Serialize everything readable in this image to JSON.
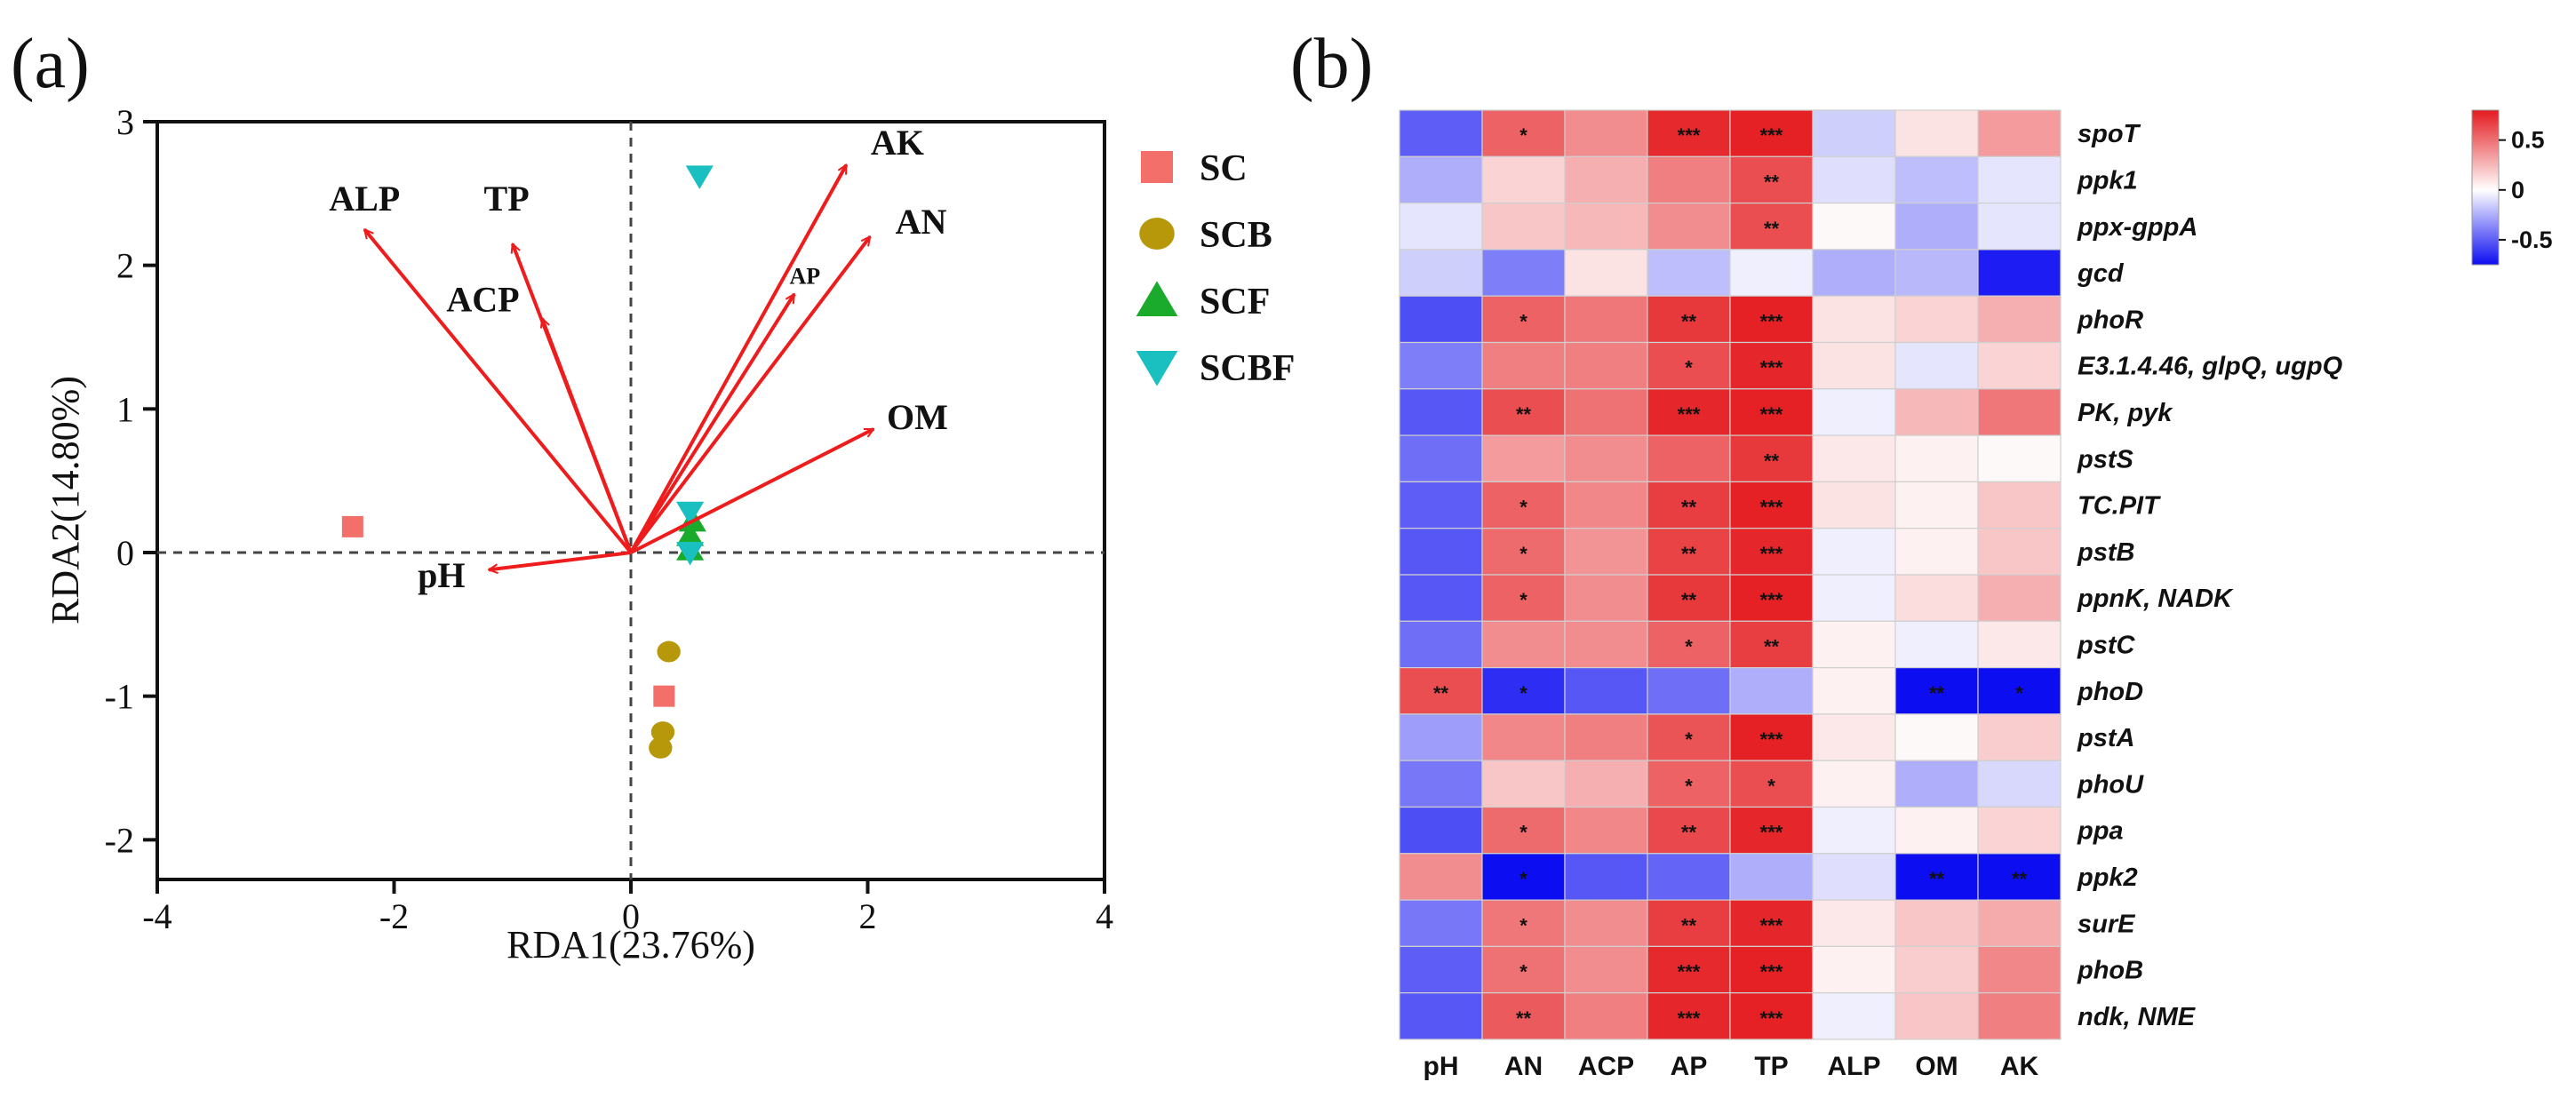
{
  "panel_labels": {
    "a": "(a)",
    "b": "(b)"
  },
  "chart_data": [
    {
      "type": "scatter",
      "subtype": "rda-biplot",
      "xlabel": "RDA1(23.76%)",
      "ylabel": "RDA2(14.80%)",
      "xlim": [
        -4,
        4
      ],
      "ylim": [
        -2.2,
        3
      ],
      "x_ticks": [
        "-4",
        "-2",
        "0",
        "2",
        "4"
      ],
      "x_tick_values": [
        -4,
        -2,
        0,
        2,
        4
      ],
      "y_ticks": [
        "3",
        "2",
        "1",
        "0",
        "-1",
        "-2"
      ],
      "y_tick_values": [
        3,
        2,
        1,
        0,
        -1,
        -2
      ],
      "reference_lines": "dashed at x=0 and y=0",
      "legend_position": "right",
      "legend": [
        {
          "name": "SC",
          "marker": "square",
          "color": "#f36f6a"
        },
        {
          "name": "SCB",
          "marker": "circle",
          "color": "#b8980b"
        },
        {
          "name": "SCF",
          "marker": "triangle-up",
          "color": "#1aaa2c"
        },
        {
          "name": "SCBF",
          "marker": "triangle-down",
          "color": "#1abfbf"
        }
      ],
      "arrow_color": "#ee1c1c",
      "vectors": [
        {
          "label": "AK",
          "x": 1.82,
          "y": 2.7,
          "label_x": 2.25,
          "label_y": 2.77,
          "small": false
        },
        {
          "label": "AN",
          "x": 2.02,
          "y": 2.2,
          "label_x": 2.45,
          "label_y": 2.22,
          "small": false
        },
        {
          "label": "AP",
          "x": 1.38,
          "y": 1.8,
          "label_x": 1.47,
          "label_y": 1.87,
          "small": true
        },
        {
          "label": "OM",
          "x": 2.05,
          "y": 0.86,
          "label_x": 2.42,
          "label_y": 0.86,
          "small": false
        },
        {
          "label": "ALP",
          "x": -2.25,
          "y": 2.25,
          "label_x": -2.25,
          "label_y": 2.38,
          "small": false
        },
        {
          "label": "TP",
          "x": -1.0,
          "y": 2.15,
          "label_x": -1.05,
          "label_y": 2.38,
          "small": false
        },
        {
          "label": "ACP",
          "x": -0.75,
          "y": 1.63,
          "label_x": -1.25,
          "label_y": 1.68,
          "small": false
        },
        {
          "label": "pH",
          "x": -1.2,
          "y": -0.12,
          "label_x": -1.6,
          "label_y": -0.24,
          "small": false
        }
      ],
      "points": [
        {
          "group": "SC",
          "x": -2.35,
          "y": 0.18
        },
        {
          "group": "SC",
          "x": 0.28,
          "y": -1.0
        },
        {
          "group": "SCB",
          "x": 0.32,
          "y": -0.69
        },
        {
          "group": "SCB",
          "x": 0.27,
          "y": -1.25
        },
        {
          "group": "SCB",
          "x": 0.25,
          "y": -1.36
        },
        {
          "group": "SCF",
          "x": 0.52,
          "y": 0.22
        },
        {
          "group": "SCF",
          "x": 0.5,
          "y": 0.12
        },
        {
          "group": "SCF",
          "x": 0.5,
          "y": 0.02
        },
        {
          "group": "SCBF",
          "x": 0.58,
          "y": 2.62
        },
        {
          "group": "SCBF",
          "x": 0.5,
          "y": 0.28
        },
        {
          "group": "SCBF",
          "x": 0.5,
          "y": 0.0
        }
      ]
    },
    {
      "type": "heatmap",
      "x_labels": [
        "pH",
        "AN",
        "ACP",
        "AP",
        "TP",
        "ALP",
        "OM",
        "AK"
      ],
      "y_labels": [
        "spoT",
        "ppk1",
        "ppx-gppA",
        "gcd",
        "phoR",
        "E3.1.4.46, glpQ, ugpQ",
        "PK, pyk",
        "pstS",
        "TC.PIT",
        "pstB",
        "ppnK, NADK",
        "pstC",
        "phoD",
        "pstA",
        "phoU",
        "ppa",
        "ppk2",
        "surE",
        "phoB",
        "ndk, NME"
      ],
      "color_range": [
        -0.75,
        0.8
      ],
      "colorbar_ticks": [
        "0.5",
        "0",
        "-0.5"
      ],
      "colorbar_tick_values": [
        0.5,
        0,
        -0.5
      ],
      "colors": {
        "low": "#0d0df2",
        "mid": "#ffffff",
        "high": "#e41b1f"
      },
      "values": [
        [
          -0.5,
          0.55,
          0.4,
          0.75,
          0.78,
          -0.15,
          0.1,
          0.35
        ],
        [
          -0.25,
          0.15,
          0.28,
          0.45,
          0.62,
          -0.1,
          -0.2,
          -0.08
        ],
        [
          -0.08,
          0.2,
          0.25,
          0.4,
          0.62,
          0.02,
          -0.25,
          -0.08
        ],
        [
          -0.15,
          -0.4,
          0.1,
          -0.2,
          -0.05,
          -0.25,
          -0.22,
          -0.7
        ],
        [
          -0.55,
          0.55,
          0.48,
          0.7,
          0.78,
          0.1,
          0.15,
          0.28
        ],
        [
          -0.4,
          0.45,
          0.45,
          0.62,
          0.76,
          0.1,
          -0.08,
          0.15
        ],
        [
          -0.52,
          0.62,
          0.5,
          0.76,
          0.78,
          -0.05,
          0.25,
          0.48
        ],
        [
          -0.45,
          0.35,
          0.4,
          0.55,
          0.7,
          0.08,
          0.05,
          0.02
        ],
        [
          -0.5,
          0.55,
          0.42,
          0.68,
          0.78,
          0.1,
          0.05,
          0.2
        ],
        [
          -0.52,
          0.52,
          0.38,
          0.66,
          0.76,
          -0.05,
          0.05,
          0.2
        ],
        [
          -0.52,
          0.55,
          0.4,
          0.7,
          0.78,
          -0.05,
          0.12,
          0.28
        ],
        [
          -0.45,
          0.4,
          0.4,
          0.55,
          0.68,
          0.05,
          -0.05,
          0.08
        ],
        [
          0.62,
          -0.65,
          -0.52,
          -0.45,
          -0.25,
          0.05,
          -0.78,
          -0.75
        ],
        [
          -0.3,
          0.42,
          0.45,
          0.6,
          0.78,
          0.08,
          0.02,
          0.18
        ],
        [
          -0.42,
          0.2,
          0.28,
          0.55,
          0.62,
          0.05,
          -0.25,
          -0.12
        ],
        [
          -0.55,
          0.52,
          0.42,
          0.64,
          0.76,
          -0.05,
          0.05,
          0.15
        ],
        [
          0.4,
          -0.78,
          -0.52,
          -0.48,
          -0.25,
          -0.1,
          -0.78,
          -0.75
        ],
        [
          -0.42,
          0.48,
          0.4,
          0.68,
          0.76,
          0.08,
          0.2,
          0.3
        ],
        [
          -0.5,
          0.5,
          0.4,
          0.75,
          0.78,
          0.05,
          0.18,
          0.42
        ],
        [
          -0.52,
          0.58,
          0.45,
          0.76,
          0.78,
          -0.05,
          0.2,
          0.45
        ]
      ],
      "significance": [
        [
          "",
          "*",
          "",
          "***",
          "***",
          "",
          "",
          ""
        ],
        [
          "",
          "",
          "",
          "",
          "**",
          "",
          "",
          ""
        ],
        [
          "",
          "",
          "",
          "",
          "**",
          "",
          "",
          ""
        ],
        [
          "",
          "",
          "",
          "",
          "",
          "",
          "",
          ""
        ],
        [
          "",
          "*",
          "",
          "**",
          "***",
          "",
          "",
          ""
        ],
        [
          "",
          "",
          "",
          "*",
          "***",
          "",
          "",
          ""
        ],
        [
          "",
          "**",
          "",
          "***",
          "***",
          "",
          "",
          ""
        ],
        [
          "",
          "",
          "",
          "",
          "**",
          "",
          "",
          ""
        ],
        [
          "",
          "*",
          "",
          "**",
          "***",
          "",
          "",
          ""
        ],
        [
          "",
          "*",
          "",
          "**",
          "***",
          "",
          "",
          ""
        ],
        [
          "",
          "*",
          "",
          "**",
          "***",
          "",
          "",
          ""
        ],
        [
          "",
          "",
          "",
          "*",
          "**",
          "",
          "",
          ""
        ],
        [
          "**",
          "*",
          "",
          "",
          "",
          "",
          "**",
          "*"
        ],
        [
          "",
          "",
          "",
          "*",
          "***",
          "",
          "",
          ""
        ],
        [
          "",
          "",
          "",
          "*",
          "*",
          "",
          "",
          ""
        ],
        [
          "",
          "*",
          "",
          "**",
          "***",
          "",
          "",
          ""
        ],
        [
          "",
          "*",
          "",
          "",
          "",
          "",
          "**",
          "**"
        ],
        [
          "",
          "*",
          "",
          "**",
          "***",
          "",
          "",
          ""
        ],
        [
          "",
          "*",
          "",
          "***",
          "***",
          "",
          "",
          ""
        ],
        [
          "",
          "**",
          "",
          "***",
          "***",
          "",
          "",
          ""
        ]
      ]
    }
  ]
}
